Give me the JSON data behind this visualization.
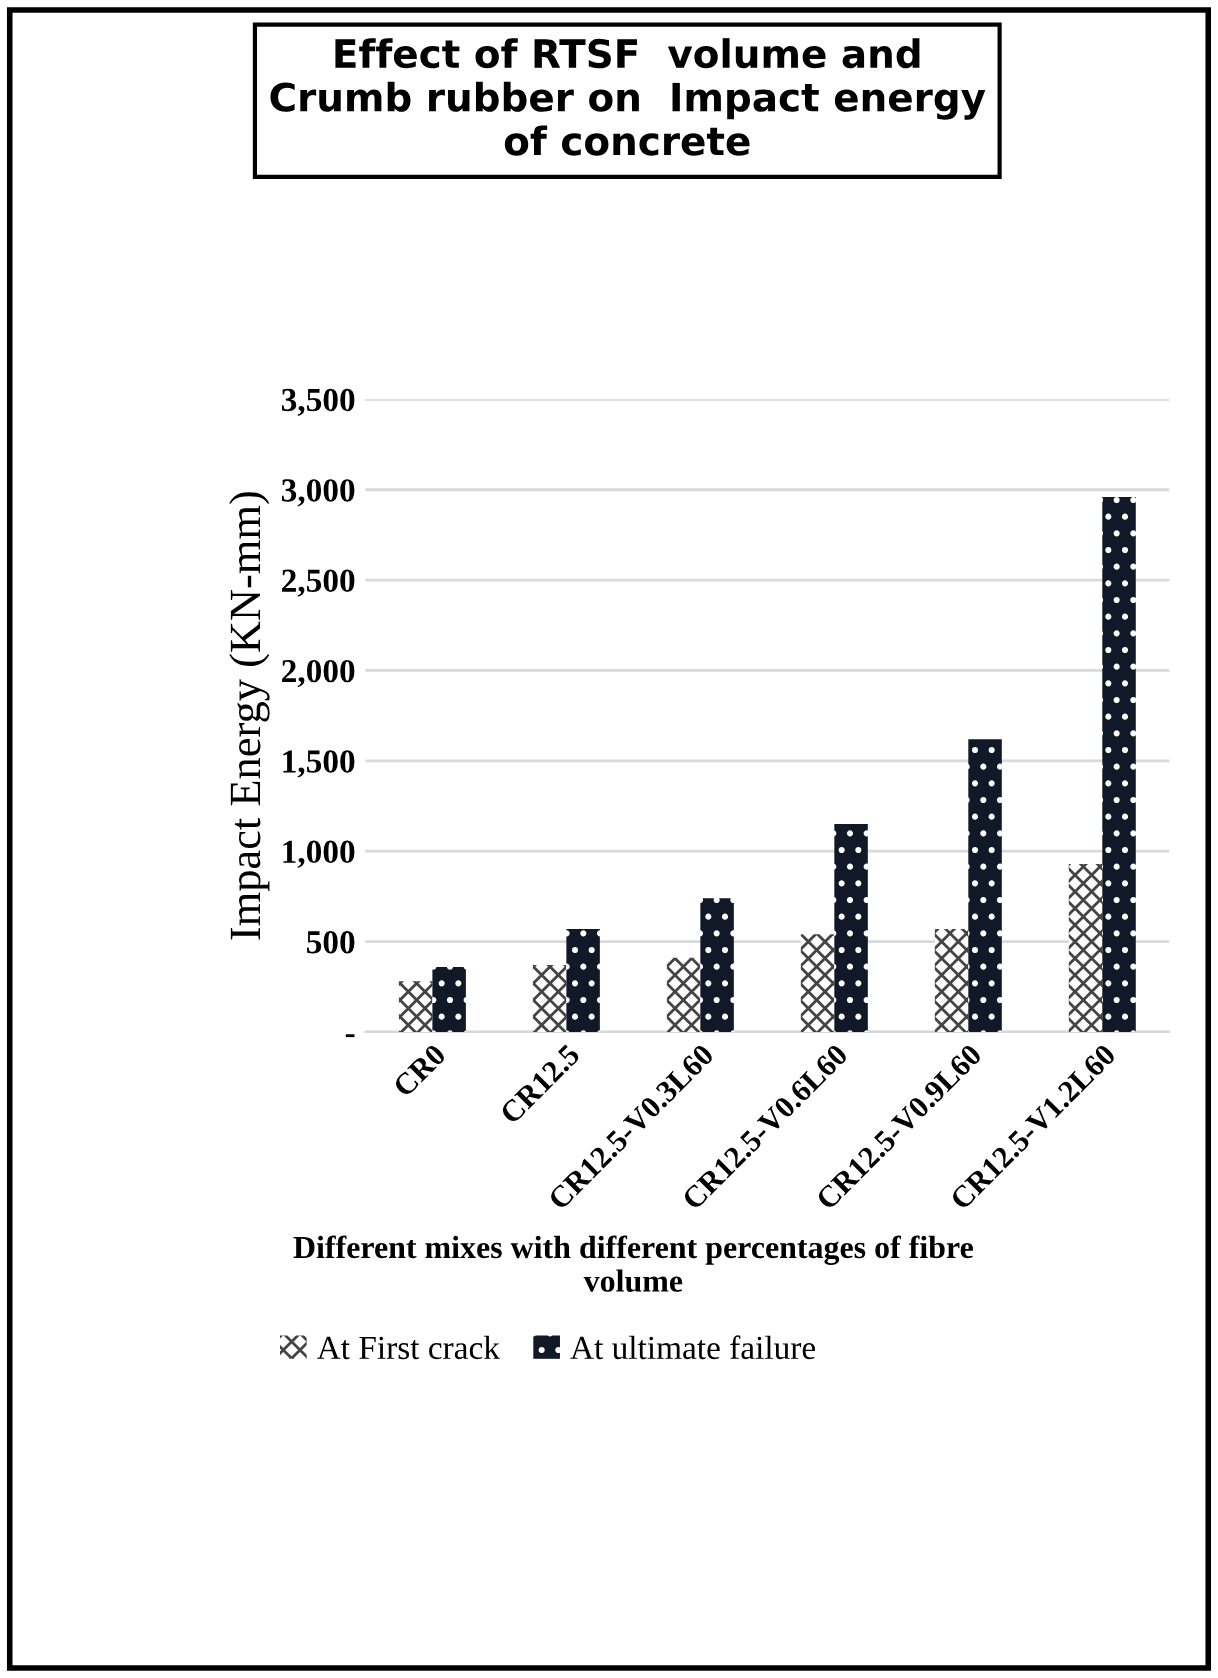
{
  "chart_data": {
    "type": "bar",
    "title": "Effect of RTSF  volume and Crumb rubber on  Impact energy of concrete",
    "xlabel": "Different mixes with different percentages of fibre volume",
    "ylabel": "Impact Energy (KN-mm)",
    "categories": [
      "CR0",
      "CR12.5",
      "CR12.5-V0.3L60",
      "CR12.5-V0.6L60",
      "CR12.5-V0.9L60",
      "CR12.5-V1.2L60"
    ],
    "series": [
      {
        "name": "At First crack",
        "color": "#ffffff",
        "values": [
          280,
          370,
          410,
          540,
          570,
          930
        ]
      },
      {
        "name": "At ultimate failure",
        "color": "#111827",
        "values": [
          360,
          570,
          740,
          1150,
          1620,
          2960
        ]
      }
    ],
    "ylim": [
      0,
      3500
    ],
    "yticks": [
      {
        "value": 0,
        "label": "-"
      },
      {
        "value": 500,
        "label": "500"
      },
      {
        "value": 1000,
        "label": "1,000"
      },
      {
        "value": 1500,
        "label": "1,500"
      },
      {
        "value": 2000,
        "label": "2,000"
      },
      {
        "value": 2500,
        "label": "2,500"
      },
      {
        "value": 3000,
        "label": "3,000"
      },
      {
        "value": 3500,
        "label": "3,500"
      }
    ],
    "grid": "y",
    "legend": "bottom"
  }
}
